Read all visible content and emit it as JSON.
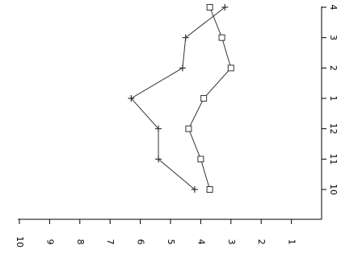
{
  "chart_data": {
    "type": "line",
    "orientation": "rotated-90",
    "categories": [
      "10",
      "11",
      "12",
      "1",
      "2",
      "3",
      "4"
    ],
    "series": [
      {
        "marker": "square",
        "values": [
          3.7,
          4.0,
          4.4,
          3.9,
          3.0,
          3.3,
          3.7
        ]
      },
      {
        "marker": "plus",
        "values": [
          4.2,
          5.4,
          5.4,
          6.3,
          4.6,
          4.5,
          3.2
        ]
      }
    ],
    "y_ticks": [
      "10",
      "9",
      "8",
      "7",
      "6",
      "5",
      "4",
      "3",
      "2",
      "1"
    ],
    "ylim": [
      0,
      10
    ],
    "grid": false,
    "colors": {
      "line": "#333333",
      "axis": "#000000"
    }
  }
}
